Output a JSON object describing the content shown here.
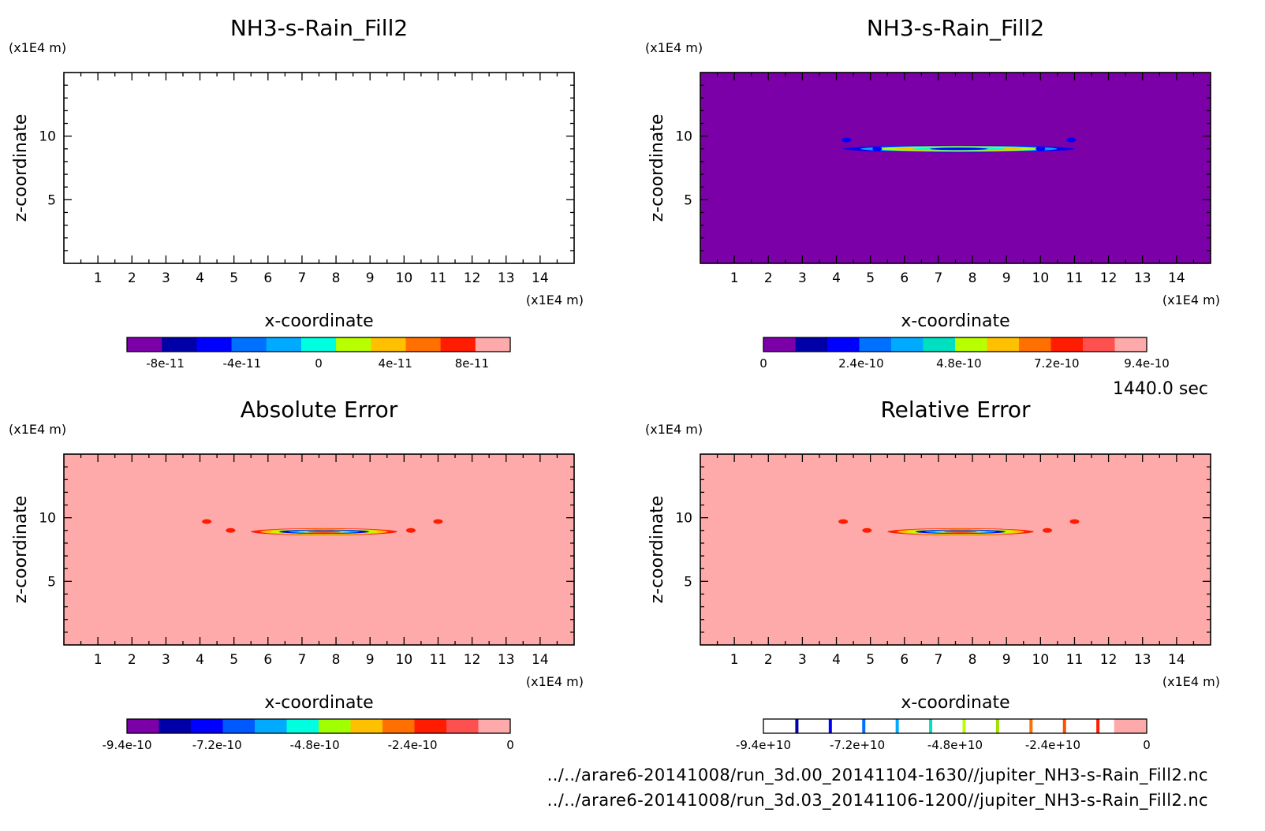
{
  "chart_data": [
    {
      "type": "heatmap",
      "title": "NH3-s-Rain_Fill2",
      "xlabel": "x-coordinate",
      "ylabel": "z-coordinate",
      "x_unit": "(x1E4 m)",
      "y_unit": "(x1E4 m)",
      "xlim": [
        0,
        15
      ],
      "ylim": [
        0,
        15
      ],
      "x_ticks": [
        1,
        2,
        3,
        4,
        5,
        6,
        7,
        8,
        9,
        10,
        11,
        12,
        13,
        14
      ],
      "y_ticks": [
        5,
        10
      ],
      "background_color": "#ffffff",
      "features": [],
      "colorbar": {
        "colors": [
          "#7b00a8",
          "#0000a8",
          "#0000ff",
          "#0070ff",
          "#00aaff",
          "#00ffe0",
          "#b8ff00",
          "#ffc000",
          "#ff7000",
          "#ff1c00",
          "#ffaaaa"
        ],
        "tick_labels": [
          "-8e-11",
          "-4e-11",
          "0",
          "4e-11",
          "8e-11"
        ],
        "tick_fractions": [
          0.1,
          0.3,
          0.5,
          0.7,
          0.9
        ]
      }
    },
    {
      "type": "heatmap",
      "title": "NH3-s-Rain_Fill2",
      "xlabel": "x-coordinate",
      "ylabel": "z-coordinate",
      "x_unit": "(x1E4 m)",
      "y_unit": "(x1E4 m)",
      "xlim": [
        0,
        15
      ],
      "ylim": [
        0,
        15
      ],
      "x_ticks": [
        1,
        2,
        3,
        4,
        5,
        6,
        7,
        8,
        9,
        10,
        11,
        12,
        13,
        14
      ],
      "y_ticks": [
        5,
        10
      ],
      "background_color": "#7b00a8",
      "features": [
        {
          "shape": "band",
          "x": [
            4.2,
            11.0
          ],
          "z": 9.0,
          "colors": [
            "#0000ff",
            "#00aaff",
            "#b8ff00",
            "#ffc000",
            "#00ffe0",
            "#0000ff"
          ]
        },
        {
          "shape": "dot",
          "x": 4.3,
          "z": 9.7,
          "color": "#0000ff"
        },
        {
          "shape": "dot",
          "x": 10.9,
          "z": 9.7,
          "color": "#0000ff"
        },
        {
          "shape": "dot",
          "x": 5.2,
          "z": 9.0,
          "color": "#0000ff"
        },
        {
          "shape": "dot",
          "x": 10.0,
          "z": 9.0,
          "color": "#0000ff"
        }
      ],
      "colorbar": {
        "colors": [
          "#7b00a8",
          "#0000a8",
          "#0000ff",
          "#0070ff",
          "#00aaff",
          "#00e0c0",
          "#b8ff00",
          "#ffc000",
          "#ff7000",
          "#ff1c00",
          "#ff5050",
          "#ffaaaa"
        ],
        "tick_labels": [
          "0",
          "2.4e-10",
          "4.8e-10",
          "7.2e-10",
          "9.4e-10"
        ],
        "tick_fractions": [
          0.0,
          0.255,
          0.51,
          0.765,
          1.0
        ]
      }
    },
    {
      "type": "heatmap",
      "title": "Absolute Error",
      "xlabel": "x-coordinate",
      "ylabel": "z-coordinate",
      "x_unit": "(x1E4 m)",
      "y_unit": "(x1E4 m)",
      "xlim": [
        0,
        15
      ],
      "ylim": [
        0,
        15
      ],
      "x_ticks": [
        1,
        2,
        3,
        4,
        5,
        6,
        7,
        8,
        9,
        10,
        11,
        12,
        13,
        14
      ],
      "y_ticks": [
        5,
        10
      ],
      "background_color": "#ffaaaa",
      "features": [
        {
          "shape": "band",
          "x": [
            5.5,
            9.8
          ],
          "z": 8.9,
          "colors": [
            "#ff1c00",
            "#ffc000",
            "#b8ff00",
            "#0000ff",
            "#00aaff",
            "#ffc000",
            "#ff1c00"
          ]
        },
        {
          "shape": "dot",
          "x": 4.2,
          "z": 9.7,
          "color": "#ff1c00"
        },
        {
          "shape": "dot",
          "x": 11.0,
          "z": 9.7,
          "color": "#ff1c00"
        },
        {
          "shape": "dot",
          "x": 4.9,
          "z": 9.0,
          "color": "#ff1c00"
        },
        {
          "shape": "dot",
          "x": 10.2,
          "z": 9.0,
          "color": "#ff1c00"
        }
      ],
      "colorbar": {
        "colors": [
          "#7b00a8",
          "#0000a8",
          "#0000ff",
          "#0058ff",
          "#00aaff",
          "#00ffe0",
          "#a0ff00",
          "#ffc000",
          "#ff7000",
          "#ff1c00",
          "#ff5050",
          "#ffaaaa"
        ],
        "tick_labels": [
          "-9.4e-10",
          "-7.2e-10",
          "-4.8e-10",
          "-2.4e-10",
          "0"
        ],
        "tick_fractions": [
          0.0,
          0.235,
          0.49,
          0.745,
          1.0
        ]
      }
    },
    {
      "type": "heatmap",
      "title": "Relative Error",
      "xlabel": "x-coordinate",
      "ylabel": "z-coordinate",
      "x_unit": "(x1E4 m)",
      "y_unit": "(x1E4 m)",
      "xlim": [
        0,
        15
      ],
      "ylim": [
        0,
        15
      ],
      "x_ticks": [
        1,
        2,
        3,
        4,
        5,
        6,
        7,
        8,
        9,
        10,
        11,
        12,
        13,
        14
      ],
      "y_ticks": [
        5,
        10
      ],
      "background_color": "#ffaaaa",
      "features": [
        {
          "shape": "band",
          "x": [
            5.5,
            9.8
          ],
          "z": 8.9,
          "colors": [
            "#ff1c00",
            "#ffc000",
            "#b8ff00",
            "#0000ff",
            "#00aaff",
            "#ffc000",
            "#ff1c00"
          ]
        },
        {
          "shape": "dot",
          "x": 4.2,
          "z": 9.7,
          "color": "#ff1c00"
        },
        {
          "shape": "dot",
          "x": 11.0,
          "z": 9.7,
          "color": "#ff1c00"
        },
        {
          "shape": "dot",
          "x": 4.9,
          "z": 9.0,
          "color": "#ff1c00"
        },
        {
          "shape": "dot",
          "x": 10.2,
          "z": 9.0,
          "color": "#ff1c00"
        }
      ],
      "colorbar": {
        "style": "lines",
        "line_colors": [
          "#0000a8",
          "#0000ff",
          "#0070ff",
          "#00aaff",
          "#00e0c0",
          "#b8ff00",
          "#a0e000",
          "#ff7000",
          "#ff5000",
          "#ff1c00"
        ],
        "last_fill": "#ffaaaa",
        "tick_labels": [
          "-9.4e+10",
          "-7.2e+10",
          "-4.8e+10",
          "-2.4e+10",
          "0"
        ],
        "tick_fractions": [
          0.0,
          0.245,
          0.5,
          0.755,
          1.0
        ]
      }
    }
  ],
  "time_label": "1440.0 sec",
  "file_paths": [
    "../../arare6-20141008/run_3d.00_20141104-1630//jupiter_NH3-s-Rain_Fill2.nc",
    "../../arare6-20141008/run_3d.03_20141106-1200//jupiter_NH3-s-Rain_Fill2.nc"
  ]
}
